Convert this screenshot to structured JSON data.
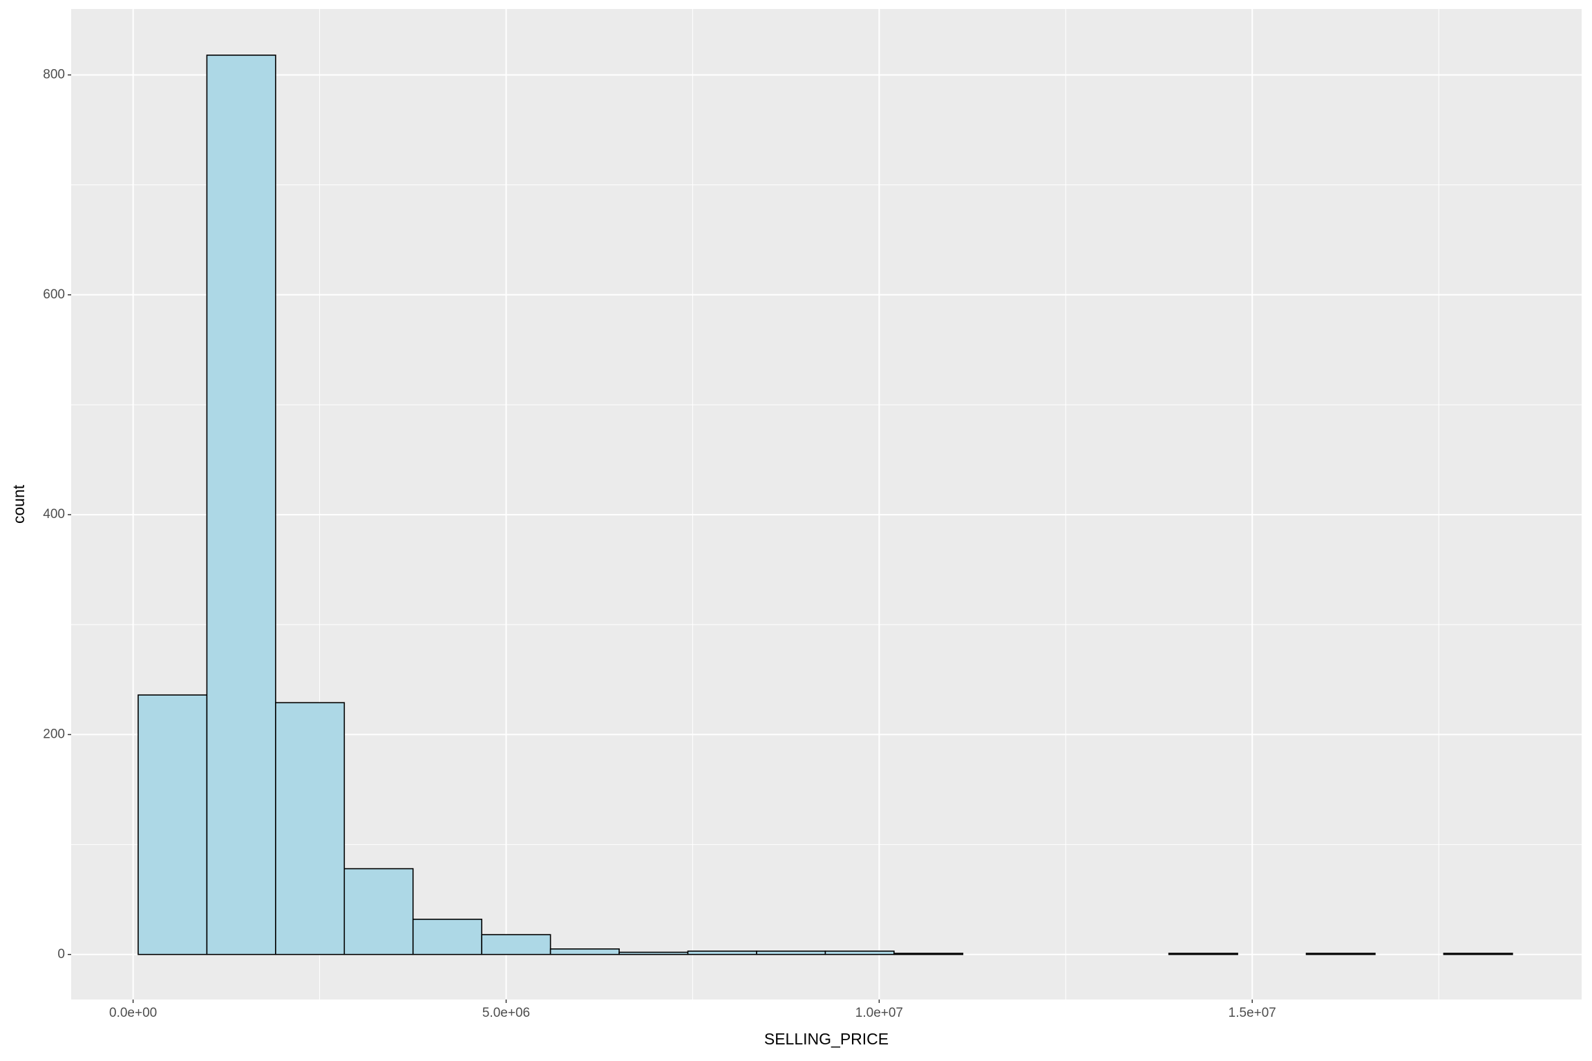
{
  "chart_data": {
    "type": "histogram",
    "x_label": "SELLING_PRICE",
    "y_label": "count",
    "bins": [
      68000,
      989000,
      1910000,
      2831000,
      3752000,
      4673000,
      5594000,
      6515000,
      7436000,
      8357000,
      9278000,
      10199000,
      11120000,
      12041000,
      12962000,
      13883000,
      14804000,
      15725000,
      16646000,
      17567000,
      18488000
    ],
    "values": [
      236,
      818,
      229,
      78,
      32,
      18,
      5,
      2,
      3,
      3,
      3,
      1,
      0,
      0,
      0,
      1,
      0,
      1,
      0,
      1
    ],
    "color": "#add8e6",
    "edge_color": "#000000",
    "xlim": [
      -830000,
      19415000
    ],
    "ylim": [
      -41,
      860
    ],
    "xticks": [
      {
        "value": 0,
        "label": "0.0e+00"
      },
      {
        "value": 5000000,
        "label": "5.0e+06"
      },
      {
        "value": 10000000,
        "label": "1.0e+07"
      },
      {
        "value": 15000000,
        "label": "1.5e+07"
      }
    ],
    "yticks": [
      0,
      200,
      400,
      600,
      800
    ],
    "xticks_minor": [
      2500000,
      7500000,
      12500000,
      17500000
    ],
    "yticks_minor": [
      100,
      300,
      500,
      700
    ],
    "grid": true
  }
}
